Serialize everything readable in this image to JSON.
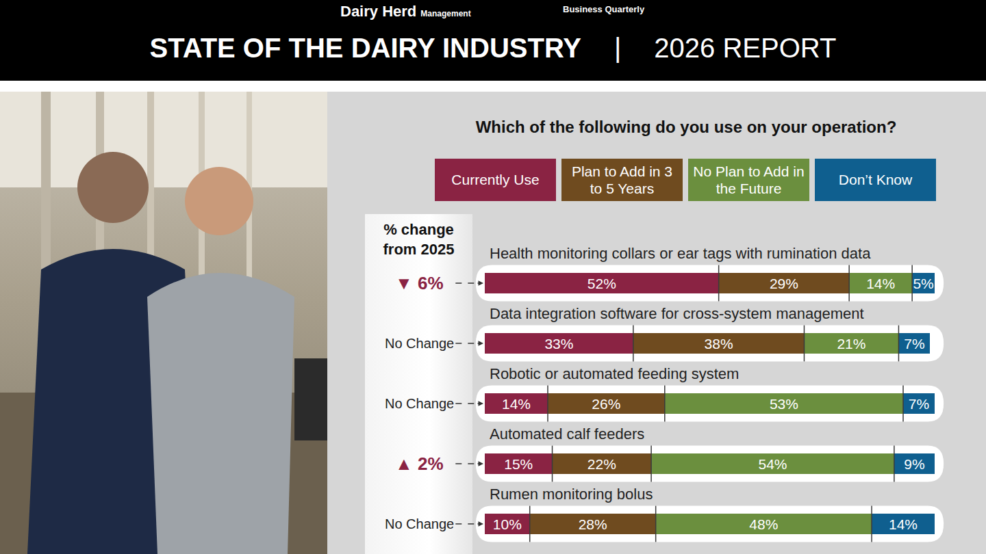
{
  "header": {
    "logo": "Dairy Herd",
    "logo_sub": "Management",
    "tagline": "Business Quarterly",
    "title": "STATE OF THE DAIRY INDUSTRY",
    "separator": "|",
    "report": "2026 REPORT"
  },
  "chart_data": {
    "type": "bar",
    "orientation": "horizontal",
    "stacked": true,
    "data_labels": true,
    "tick_labels": false,
    "grid": false,
    "legend": "top",
    "title": "Which of the following do you use on your operation?",
    "change_title": "% change from 2025",
    "categories": [
      "Health monitoring collars or ear tags with rumination data",
      "Data integration software for cross-system management",
      "Robotic or automated feeding system",
      "Automated calf feeders",
      "Rumen monitoring bolus"
    ],
    "change": [
      {
        "value": -6,
        "label": "▼ 6%"
      },
      {
        "value": 0,
        "label": "No Change"
      },
      {
        "value": 0,
        "label": "No Change"
      },
      {
        "value": 2,
        "label": "▲ 2%"
      },
      {
        "value": 0,
        "label": "No Change"
      }
    ],
    "xlim": [
      0,
      100
    ],
    "series": [
      {
        "name": "Currently Use",
        "color": "#8a2343",
        "values": [
          52,
          33,
          14,
          15,
          10
        ],
        "value_labels": [
          "52%",
          "33%",
          "14%",
          "15%",
          "10%"
        ]
      },
      {
        "name": "Plan to Add in 3 to 5 Years",
        "color": "#6f4b1f",
        "values": [
          29,
          38,
          26,
          22,
          28
        ],
        "value_labels": [
          "29%",
          "38%",
          "26%",
          "22%",
          "28%"
        ]
      },
      {
        "name": "No Plan to Add in the Future",
        "color": "#6b8f3e",
        "values": [
          14,
          21,
          53,
          54,
          48
        ],
        "value_labels": [
          "14%",
          "21%",
          "53%",
          "54%",
          "48%"
        ]
      },
      {
        "name": "Don’t Know",
        "color": "#0f5f8f",
        "values": [
          5,
          7,
          7,
          9,
          14
        ],
        "value_labels": [
          "5%",
          "7%",
          "7%",
          "9%",
          "14%"
        ]
      }
    ]
  }
}
